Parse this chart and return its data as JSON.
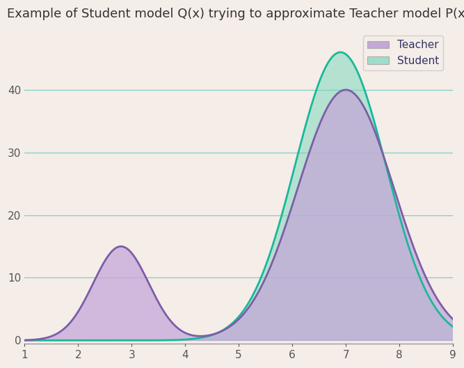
{
  "title": "Example of Student model Q(x) trying to approximate Teacher model P(x)",
  "title_fontsize": 13,
  "background_color": "#f5ede8",
  "grid_color": "#7ecec4",
  "teacher_color": "#7b5ea7",
  "teacher_fill": "#c4a8d8",
  "student_color": "#1ab89a",
  "student_fill": "#9edec8",
  "legend_labels": [
    "Teacher",
    "Student"
  ],
  "xlim": [
    1,
    9
  ],
  "ylim": [
    -0.5,
    50
  ],
  "xticks": [
    1,
    2,
    3,
    4,
    5,
    6,
    7,
    8,
    9
  ],
  "yticks": [
    0,
    10,
    20,
    30,
    40
  ],
  "teacher_params": {
    "mu1": 2.8,
    "sigma1": 0.52,
    "amp1": 15,
    "mu2": 7.0,
    "sigma2": 0.9,
    "amp2": 40
  },
  "student_params": {
    "mu": 6.9,
    "sigma": 0.85,
    "amp": 46
  }
}
